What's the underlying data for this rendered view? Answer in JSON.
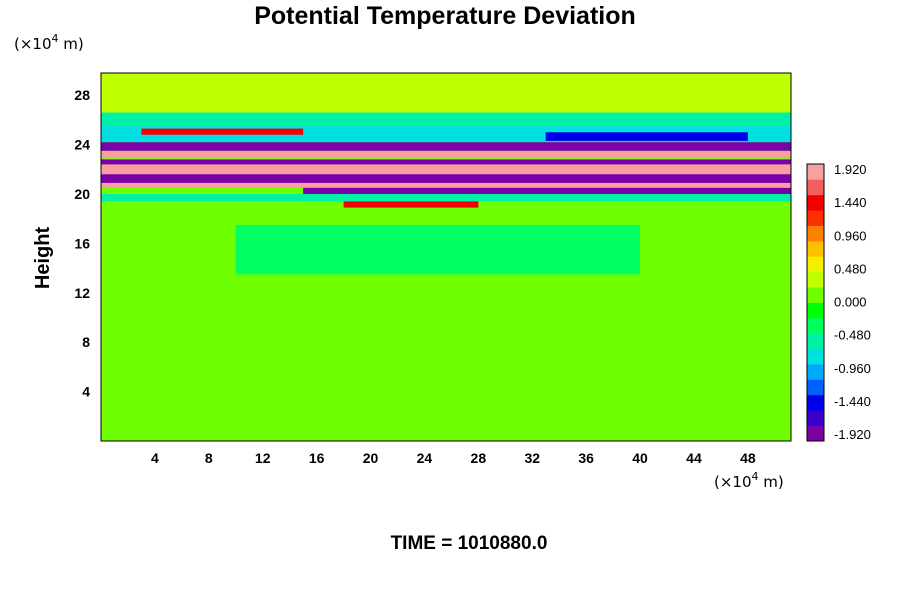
{
  "chart_data": {
    "type": "heatmap",
    "title": "Potential Temperature Deviation",
    "ylabel": "Height",
    "xunit": "(×10",
    "xunit_exp": "4",
    "xunit_tail": " m)",
    "yunit": "(×10",
    "yunit_exp": "4",
    "yunit_tail": " m)",
    "xlim": [
      0,
      51.2
    ],
    "ylim": [
      0,
      29.8
    ],
    "xticks": [
      4,
      8,
      12,
      16,
      20,
      24,
      28,
      32,
      36,
      40,
      44,
      48
    ],
    "yticks": [
      4,
      8,
      12,
      16,
      20,
      24,
      28
    ],
    "grid": false,
    "colorbar": {
      "range": [
        -1.92,
        1.92
      ],
      "labels": [
        "1.920",
        "1.440",
        "0.960",
        "0.480",
        "0.000",
        "-0.480",
        "-0.960",
        "-1.440",
        "-1.920"
      ],
      "colors": [
        "#7a00a8",
        "#3a00c8",
        "#0000e8",
        "#0060ff",
        "#00a8ff",
        "#00e0e0",
        "#00f0a8",
        "#00ff60",
        "#00ff00",
        "#70ff00",
        "#c0ff00",
        "#f0f000",
        "#ffc000",
        "#ff8000",
        "#ff3000",
        "#f00000",
        "#f06060",
        "#f8a0a0"
      ]
    },
    "field": {
      "background": 0.0,
      "features": [
        {
          "x0": 0,
          "x1": 51.2,
          "y0": 20.8,
          "y1": 22.8,
          "value": -1.92
        },
        {
          "x0": 0,
          "x1": 51.2,
          "y0": 21.6,
          "y1": 22.4,
          "value": 1.92
        },
        {
          "x0": 0,
          "x1": 51.2,
          "y0": 22.9,
          "y1": 23.5,
          "value": 1.92
        },
        {
          "x0": 0,
          "x1": 51.2,
          "y0": 23.5,
          "y1": 24.2,
          "value": -1.92
        },
        {
          "x0": 15,
          "x1": 51.2,
          "y0": 20.0,
          "y1": 20.6,
          "value": -1.92
        },
        {
          "x0": 0,
          "x1": 51.2,
          "y0": 20.5,
          "y1": 20.9,
          "value": 1.92
        },
        {
          "x0": 18,
          "x1": 28,
          "y0": 18.9,
          "y1": 19.6,
          "value": 1.44
        },
        {
          "x0": 0,
          "x1": 51.2,
          "y0": 19.4,
          "y1": 20.0,
          "value": -0.48
        },
        {
          "x0": 0,
          "x1": 51.2,
          "y0": 24.2,
          "y1": 25.5,
          "value": -0.72
        },
        {
          "x0": 3,
          "x1": 15,
          "y0": 24.8,
          "y1": 25.3,
          "value": 1.44
        },
        {
          "x0": 33,
          "x1": 48,
          "y0": 24.3,
          "y1": 25.0,
          "value": -1.44
        },
        {
          "x0": 0,
          "x1": 51.2,
          "y0": 25.5,
          "y1": 26.6,
          "value": -0.48
        },
        {
          "x0": 0,
          "x1": 51.2,
          "y0": 26.6,
          "y1": 29.8,
          "value": 0.24
        },
        {
          "x0": 0,
          "x1": 51.2,
          "y0": 0,
          "y1": 10.5,
          "value": 0.0
        },
        {
          "x0": 0,
          "x1": 51.2,
          "y0": 10.5,
          "y1": 11.6,
          "value": 0.2
        },
        {
          "x0": 10,
          "x1": 40,
          "y0": 13.5,
          "y1": 17.5,
          "value": -0.3
        }
      ]
    }
  },
  "footer": {
    "time_label": "TIME = 1010880.0"
  },
  "colors": {
    "frame": "#000000",
    "background": "#ffffff"
  }
}
